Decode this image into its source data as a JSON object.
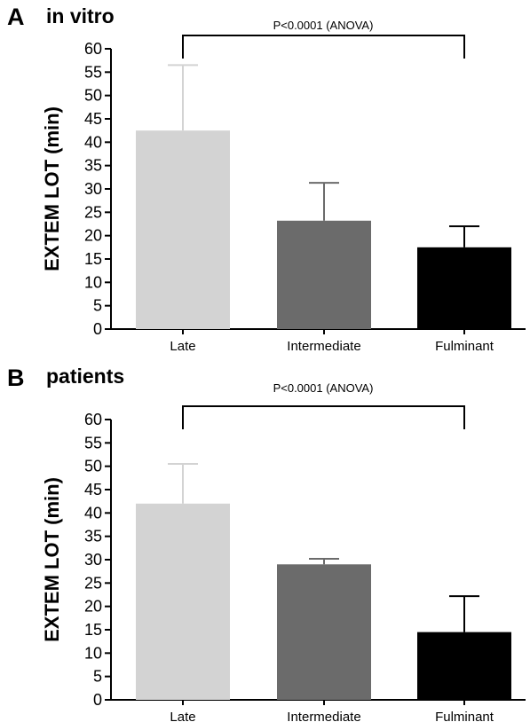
{
  "chart_data": [
    {
      "type": "bar",
      "panel": "A",
      "title": "in vitro",
      "ylabel": "EXTEM LOT (min)",
      "xlabel": "",
      "ylim": [
        0,
        60
      ],
      "yticks": [
        0,
        5,
        10,
        15,
        20,
        25,
        30,
        35,
        40,
        45,
        50,
        55,
        60
      ],
      "categories": [
        "Late",
        "Intermediate",
        "Fulminant"
      ],
      "values": [
        42.5,
        23.2,
        17.5
      ],
      "error_upper": [
        56.5,
        31.3,
        22.0
      ],
      "colors": [
        "#d3d3d3",
        "#6b6b6b",
        "#000000"
      ],
      "annotation": "P<0.0001 (ANOVA)",
      "grid": false
    },
    {
      "type": "bar",
      "panel": "B",
      "title": "patients",
      "ylabel": "EXTEM LOT (min)",
      "xlabel": "",
      "ylim": [
        0,
        60
      ],
      "yticks": [
        0,
        5,
        10,
        15,
        20,
        25,
        30,
        35,
        40,
        45,
        50,
        55,
        60
      ],
      "categories": [
        "Late",
        "Intermediate",
        "Fulminant"
      ],
      "values": [
        42.0,
        29.0,
        14.5
      ],
      "error_upper": [
        50.5,
        30.2,
        22.2
      ],
      "colors": [
        "#d3d3d3",
        "#6b6b6b",
        "#000000"
      ],
      "annotation": "P<0.0001 (ANOVA)",
      "grid": false
    }
  ]
}
